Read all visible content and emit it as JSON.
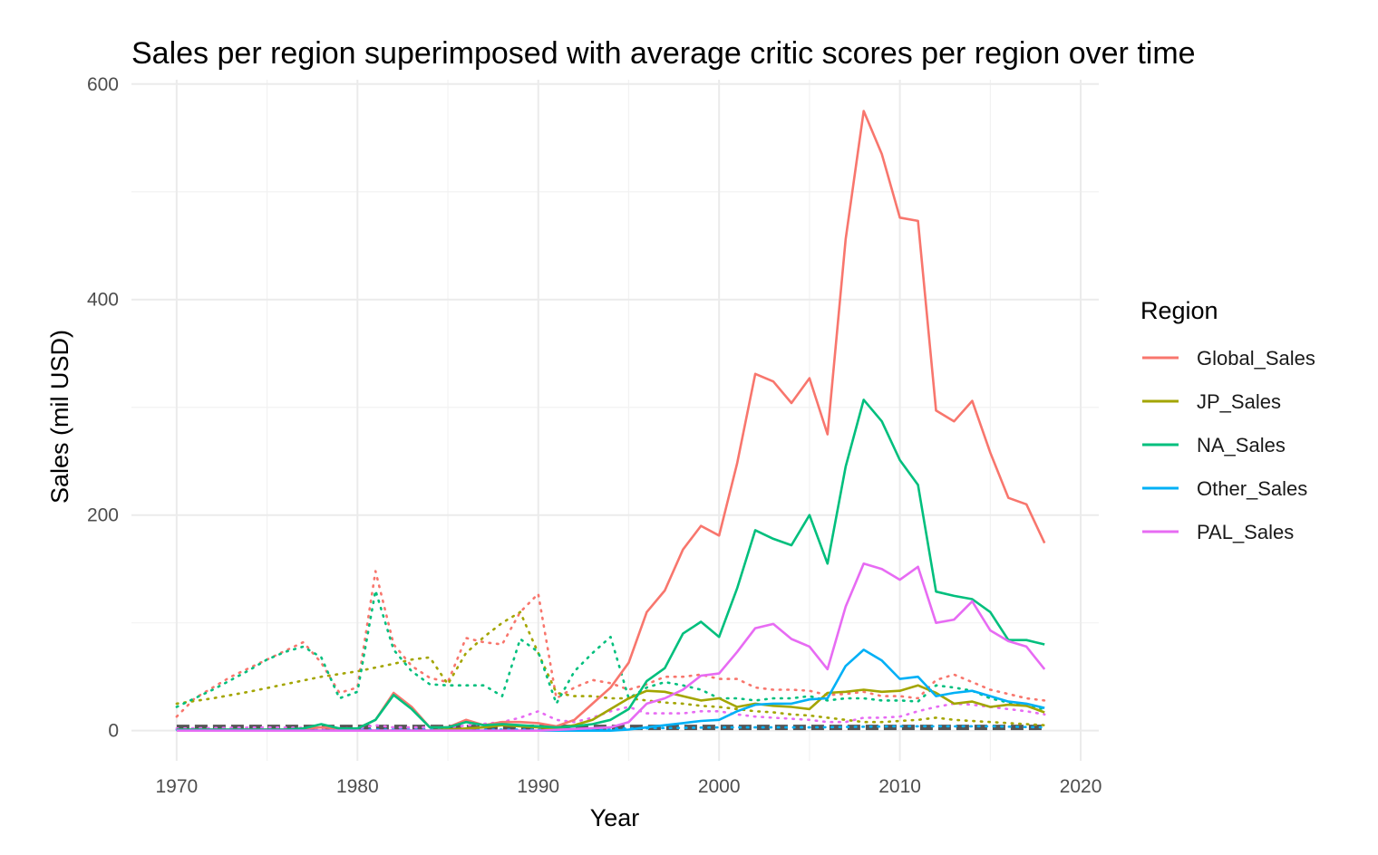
{
  "chart_data": {
    "type": "line",
    "title": "Sales per region superimposed with average critic scores per region over time",
    "xlabel": "Year",
    "ylabel": "Sales (mil USD)",
    "xlim": [
      1967.5,
      2021
    ],
    "ylim": [
      -28,
      604
    ],
    "x_ticks": [
      1970,
      1980,
      1990,
      2000,
      2010,
      2020
    ],
    "y_ticks": [
      0,
      200,
      400,
      600
    ],
    "grid": true,
    "legend": {
      "title": "Region",
      "placement": "right"
    },
    "series": [
      {
        "name": "Global_Sales",
        "color": "#F8766D",
        "style": "solid",
        "x": [
          1970,
          1971,
          1972,
          1973,
          1974,
          1975,
          1976,
          1977,
          1978,
          1979,
          1980,
          1981,
          1982,
          1983,
          1984,
          1985,
          1986,
          1987,
          1988,
          1989,
          1990,
          1991,
          1992,
          1993,
          1994,
          1995,
          1996,
          1997,
          1998,
          1999,
          2000,
          2001,
          2002,
          2003,
          2004,
          2005,
          2006,
          2007,
          2008,
          2009,
          2010,
          2011,
          2012,
          2013,
          2014,
          2015,
          2016,
          2017,
          2018
        ],
        "y": [
          1,
          1,
          1,
          1,
          1,
          1,
          1,
          2,
          3,
          2,
          2,
          10,
          35,
          22,
          3,
          3,
          10,
          5,
          8,
          8,
          7,
          4,
          10,
          25,
          40,
          63,
          110,
          130,
          168,
          190,
          181,
          248,
          331,
          324,
          304,
          327,
          275,
          456,
          575,
          535,
          476,
          473,
          297,
          287,
          306,
          258,
          216,
          210,
          174
        ]
      },
      {
        "name": "JP_Sales",
        "color": "#A3A500",
        "style": "solid",
        "x": [
          1970,
          1975,
          1980,
          1981,
          1982,
          1983,
          1984,
          1985,
          1986,
          1987,
          1988,
          1989,
          1990,
          1991,
          1992,
          1993,
          1994,
          1995,
          1996,
          1997,
          1998,
          1999,
          2000,
          2001,
          2002,
          2003,
          2004,
          2005,
          2006,
          2007,
          2008,
          2009,
          2010,
          2011,
          2012,
          2013,
          2014,
          2015,
          2016,
          2017,
          2018
        ],
        "y": [
          0,
          0,
          0,
          0,
          0,
          0,
          0,
          1,
          2,
          3,
          5,
          4,
          3,
          2,
          5,
          10,
          20,
          30,
          37,
          36,
          32,
          28,
          30,
          22,
          25,
          23,
          22,
          20,
          35,
          36,
          38,
          36,
          37,
          42,
          35,
          25,
          27,
          22,
          24,
          23,
          17
        ]
      },
      {
        "name": "NA_Sales",
        "color": "#00BF7D",
        "style": "solid",
        "x": [
          1970,
          1971,
          1972,
          1973,
          1974,
          1975,
          1976,
          1977,
          1978,
          1979,
          1980,
          1981,
          1982,
          1983,
          1984,
          1985,
          1986,
          1987,
          1988,
          1989,
          1990,
          1991,
          1992,
          1993,
          1994,
          1995,
          1996,
          1997,
          1998,
          1999,
          2000,
          2001,
          2002,
          2003,
          2004,
          2005,
          2006,
          2007,
          2008,
          2009,
          2010,
          2011,
          2012,
          2013,
          2014,
          2015,
          2016,
          2017,
          2018
        ],
        "y": [
          1,
          1,
          1,
          1,
          1,
          1,
          1,
          2,
          6,
          2,
          2,
          10,
          33,
          20,
          3,
          3,
          8,
          5,
          6,
          5,
          4,
          3,
          4,
          6,
          10,
          20,
          46,
          58,
          90,
          101,
          87,
          132,
          186,
          178,
          172,
          200,
          155,
          245,
          307,
          287,
          251,
          228,
          129,
          125,
          122,
          110,
          84,
          84,
          80
        ]
      },
      {
        "name": "Other_Sales",
        "color": "#00B0F6",
        "style": "solid",
        "x": [
          1970,
          1975,
          1980,
          1985,
          1990,
          1994,
          1995,
          1996,
          1997,
          1998,
          1999,
          2000,
          2001,
          2002,
          2003,
          2004,
          2005,
          2006,
          2007,
          2008,
          2009,
          2010,
          2011,
          2012,
          2013,
          2014,
          2015,
          2016,
          2017,
          2018
        ],
        "y": [
          0,
          0,
          0,
          0,
          0,
          0,
          1,
          3,
          5,
          7,
          9,
          10,
          18,
          24,
          25,
          25,
          29,
          30,
          60,
          75,
          65,
          48,
          50,
          32,
          35,
          37,
          32,
          27,
          25,
          21
        ]
      },
      {
        "name": "PAL_Sales",
        "color": "#E76BF3",
        "style": "solid",
        "x": [
          1970,
          1975,
          1980,
          1985,
          1990,
          1994,
          1995,
          1996,
          1997,
          1998,
          1999,
          2000,
          2001,
          2002,
          2003,
          2004,
          2005,
          2006,
          2007,
          2008,
          2009,
          2010,
          2011,
          2012,
          2013,
          2014,
          2015,
          2016,
          2017,
          2018
        ],
        "y": [
          0,
          0,
          0,
          0,
          0,
          3,
          8,
          25,
          30,
          38,
          51,
          53,
          73,
          95,
          99,
          85,
          78,
          57,
          115,
          155,
          150,
          140,
          152,
          100,
          103,
          120,
          93,
          83,
          78,
          57
        ]
      },
      {
        "name": "",
        "color": "#F8766D",
        "style": "dotted",
        "x": [
          1970,
          1971,
          1972,
          1973,
          1974,
          1975,
          1976,
          1977,
          1978,
          1979,
          1980,
          1981,
          1982,
          1983,
          1984,
          1985,
          1986,
          1987,
          1988,
          1989,
          1990,
          1991,
          1992,
          1993,
          1994,
          1995,
          1996,
          1997,
          1998,
          1999,
          2000,
          2001,
          2002,
          2003,
          2004,
          2005,
          2006,
          2007,
          2008,
          2009,
          2010,
          2011,
          2012,
          2013,
          2014,
          2015,
          2016,
          2017,
          2018
        ],
        "y": [
          13,
          30,
          40,
          50,
          58,
          66,
          74,
          82,
          63,
          35,
          40,
          148,
          80,
          60,
          49,
          45,
          86,
          82,
          80,
          110,
          127,
          30,
          40,
          47,
          44,
          38,
          43,
          50,
          50,
          52,
          48,
          48,
          40,
          38,
          38,
          37,
          33,
          34,
          36,
          32,
          32,
          30,
          47,
          52,
          45,
          38,
          34,
          30,
          28
        ]
      },
      {
        "name": "",
        "color": "#A3A500",
        "style": "dotted",
        "x": [
          1970,
          1972,
          1974,
          1976,
          1978,
          1980,
          1982,
          1983,
          1984,
          1985,
          1986,
          1987,
          1988,
          1989,
          1990,
          1991,
          1992,
          1993,
          1994,
          1995,
          1996,
          1997,
          1998,
          1999,
          2000,
          2001,
          2002,
          2003,
          2004,
          2005,
          2006,
          2007,
          2008,
          2009,
          2010,
          2011,
          2012,
          2013,
          2014,
          2015,
          2016,
          2017,
          2018
        ],
        "y": [
          25,
          30,
          36,
          43,
          50,
          55,
          62,
          66,
          68,
          43,
          72,
          87,
          100,
          110,
          72,
          35,
          32,
          32,
          30,
          30,
          28,
          26,
          25,
          23,
          22,
          20,
          18,
          17,
          15,
          14,
          12,
          10,
          8,
          8,
          9,
          10,
          12,
          10,
          9,
          8,
          7,
          6,
          5
        ]
      },
      {
        "name": "",
        "color": "#00BF7D",
        "style": "dotted",
        "x": [
          1970,
          1971,
          1972,
          1973,
          1974,
          1975,
          1976,
          1977,
          1978,
          1979,
          1980,
          1981,
          1982,
          1983,
          1984,
          1985,
          1986,
          1987,
          1988,
          1989,
          1990,
          1991,
          1992,
          1993,
          1994,
          1995,
          1996,
          1997,
          1998,
          1999,
          2000,
          2001,
          2002,
          2003,
          2004,
          2005,
          2006,
          2007,
          2008,
          2009,
          2010,
          2011,
          2012,
          2013,
          2014,
          2015,
          2016,
          2017,
          2018
        ],
        "y": [
          22,
          30,
          38,
          47,
          56,
          66,
          73,
          78,
          68,
          30,
          36,
          130,
          75,
          55,
          43,
          42,
          42,
          42,
          32,
          85,
          73,
          25,
          55,
          72,
          87,
          30,
          40,
          45,
          42,
          38,
          30,
          30,
          28,
          30,
          30,
          32,
          28,
          30,
          30,
          28,
          28,
          27,
          42,
          40,
          37,
          30,
          26,
          23,
          20
        ]
      },
      {
        "name": "",
        "color": "#00B0F6",
        "style": "dotted",
        "x": [
          1970,
          1975,
          1980,
          1985,
          1990,
          1995,
          2000,
          2005,
          2010,
          2015,
          2018
        ],
        "y": [
          1,
          1,
          1,
          1,
          1,
          2,
          3,
          3,
          4,
          4,
          3
        ]
      },
      {
        "name": "",
        "color": "#E76BF3",
        "style": "dotted",
        "x": [
          1970,
          1975,
          1980,
          1981,
          1982,
          1985,
          1988,
          1989,
          1990,
          1991,
          1992,
          1993,
          1994,
          1995,
          1996,
          1997,
          1998,
          1999,
          2000,
          2001,
          2002,
          2003,
          2004,
          2005,
          2006,
          2007,
          2008,
          2009,
          2010,
          2011,
          2012,
          2013,
          2014,
          2015,
          2016,
          2017,
          2018
        ],
        "y": [
          2,
          3,
          2,
          5,
          3,
          3,
          8,
          12,
          18,
          10,
          8,
          12,
          18,
          22,
          16,
          16,
          16,
          18,
          18,
          15,
          13,
          12,
          11,
          10,
          8,
          8,
          12,
          12,
          13,
          18,
          22,
          25,
          24,
          22,
          20,
          18,
          15
        ]
      },
      {
        "name": "",
        "color": "#555555",
        "style": "dashed",
        "x": [
          1970,
          2018
        ],
        "y": [
          3,
          3
        ]
      }
    ]
  }
}
